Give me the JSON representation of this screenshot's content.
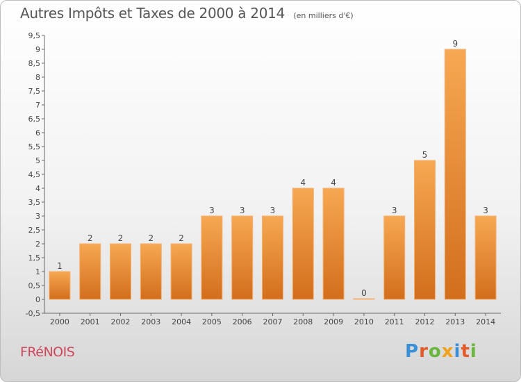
{
  "header": {
    "title": "Autres Impôts et Taxes de 2000 à 2014",
    "unit": "(en milliers d'€)"
  },
  "footer": {
    "town": "FRéNOIS",
    "brand": "Proxiti",
    "brand_letters": [
      {
        "ch": "P",
        "color": "#3a8fd6"
      },
      {
        "ch": "r",
        "color": "#e25b2a"
      },
      {
        "ch": "o",
        "color": "#6ab63a"
      },
      {
        "ch": "x",
        "color": "#f0a21a"
      },
      {
        "ch": "i",
        "color": "#3a8fd6"
      },
      {
        "ch": "t",
        "color": "#e25b2a"
      },
      {
        "ch": "i",
        "color": "#6ab63a"
      }
    ]
  },
  "chart_data": {
    "type": "bar",
    "title": "Autres Impôts et Taxes de 2000 à 2014",
    "subtitle": "(en milliers d'€)",
    "xlabel": "",
    "ylabel": "",
    "categories": [
      "2000",
      "2001",
      "2002",
      "2003",
      "2004",
      "2005",
      "2006",
      "2007",
      "2008",
      "2009",
      "2010",
      "2011",
      "2012",
      "2013",
      "2014"
    ],
    "values": [
      1,
      2,
      2,
      2,
      2,
      3,
      3,
      3,
      4,
      4,
      0,
      3,
      5,
      9,
      3
    ],
    "data_labels": [
      "1",
      "2",
      "2",
      "2",
      "2",
      "3",
      "3",
      "3",
      "4",
      "4",
      "0",
      "3",
      "5",
      "9",
      "3"
    ],
    "ylim": [
      -0.5,
      9.5
    ],
    "yticks": [
      -0.5,
      0,
      0.5,
      1,
      1.5,
      2,
      2.5,
      3,
      3.5,
      4,
      4.5,
      5,
      5.5,
      6,
      6.5,
      7,
      7.5,
      8,
      8.5,
      9,
      9.5
    ],
    "ytick_labels": [
      "-0,5",
      "0",
      "0,5",
      "1",
      "1,5",
      "2",
      "2,5",
      "3",
      "3,5",
      "4",
      "4,5",
      "5",
      "5,5",
      "6",
      "6,5",
      "7",
      "7,5",
      "8",
      "8,5",
      "9",
      "9,5"
    ],
    "grid": false,
    "legend": "none",
    "bar_color_top": "#f7a852",
    "bar_color_bottom": "#d26e1c"
  }
}
